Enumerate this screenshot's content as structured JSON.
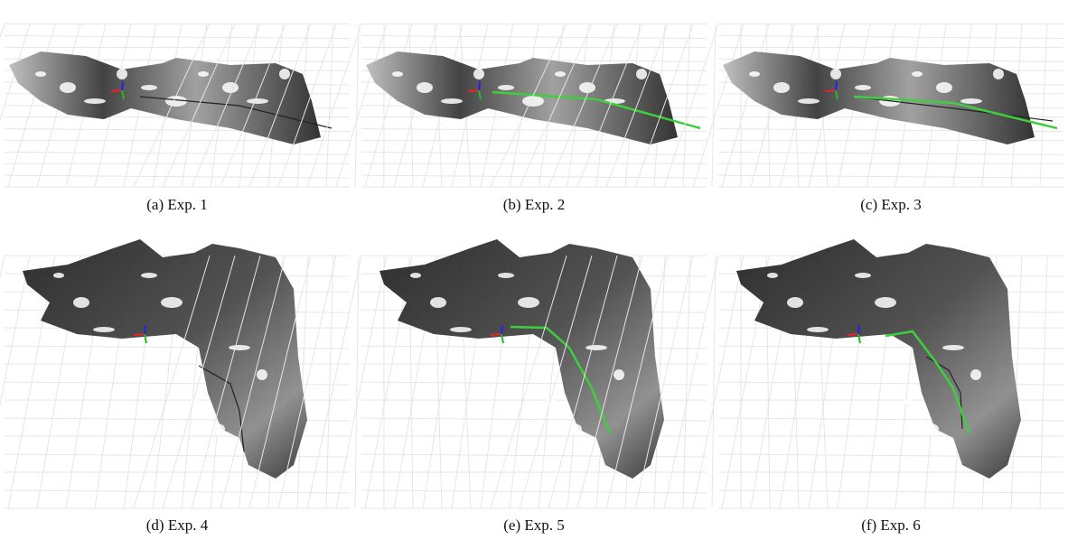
{
  "figure": {
    "panels": [
      {
        "caption": "(a) Exp. 1"
      },
      {
        "caption": "(b) Exp. 2"
      },
      {
        "caption": "(c) Exp. 3"
      },
      {
        "caption": "(d) Exp. 4"
      },
      {
        "caption": "(e) Exp. 5"
      },
      {
        "caption": "(f) Exp. 6"
      }
    ]
  }
}
